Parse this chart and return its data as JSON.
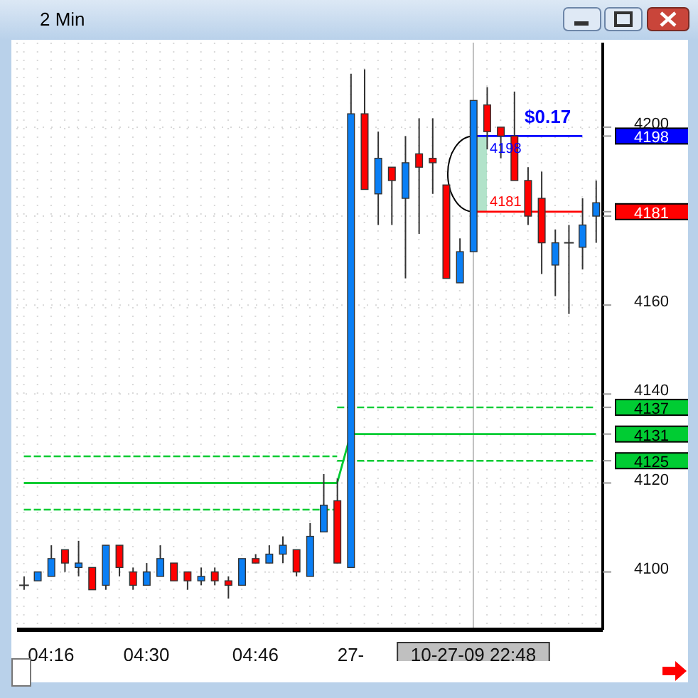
{
  "chart_data": {
    "type": "candlestick",
    "title": "2 Min",
    "categories": [
      null,
      null,
      "04:16",
      null,
      null,
      null,
      null,
      null,
      null,
      "04:30",
      null,
      null,
      null,
      null,
      null,
      null,
      null,
      "04:46",
      null,
      null,
      null,
      null,
      null,
      null,
      "27-",
      null,
      null,
      null,
      null,
      null,
      null,
      null,
      null,
      "10-27-09 22:48",
      null,
      null,
      null,
      null,
      null,
      null,
      null,
      null,
      null
    ],
    "ohlc": [
      [
        4097,
        4099,
        4096,
        4097
      ],
      [
        4098,
        4100,
        4098,
        4100
      ],
      [
        4099,
        4106,
        4099,
        4103
      ],
      [
        4105,
        4105,
        4100,
        4102
      ],
      [
        4101,
        4107,
        4099,
        4102
      ],
      [
        4101,
        4101,
        4096,
        4096
      ],
      [
        4097,
        4106,
        4096,
        4106
      ],
      [
        4106,
        4106,
        4099,
        4101
      ],
      [
        4100,
        4101,
        4096,
        4097
      ],
      [
        4097,
        4102,
        4097,
        4100
      ],
      [
        4099,
        4106,
        4099,
        4103
      ],
      [
        4102,
        4102,
        4098,
        4098
      ],
      [
        4100,
        4100,
        4096,
        4098
      ],
      [
        4098,
        4101,
        4097,
        4099
      ],
      [
        4100,
        4101,
        4097,
        4098
      ],
      [
        4098,
        4099,
        4094,
        4097
      ],
      [
        4097,
        4103,
        4097,
        4103
      ],
      [
        4103,
        4104,
        4102,
        4102
      ],
      [
        4102,
        4106,
        4102,
        4104
      ],
      [
        4104,
        4108,
        4102,
        4106
      ],
      [
        4105,
        4105,
        4099,
        4100
      ],
      [
        4099,
        4111,
        4099,
        4108
      ],
      [
        4109,
        4122,
        4109,
        4115
      ],
      [
        4116,
        4121,
        4102,
        4102
      ],
      [
        4101,
        4212,
        4101,
        4203
      ],
      [
        4203,
        4213,
        4186,
        4186
      ],
      [
        4185,
        4199,
        4178,
        4193
      ],
      [
        4191,
        4191,
        4178,
        4188
      ],
      [
        4184,
        4198,
        4166,
        4192
      ],
      [
        4194,
        4202,
        4176,
        4191
      ],
      [
        4193,
        4202,
        4185,
        4192
      ],
      [
        4187,
        4187,
        4166,
        4166
      ],
      [
        4165,
        4175,
        4165,
        4172
      ],
      [
        4172,
        4206,
        4172,
        4206
      ],
      [
        4205,
        4209,
        4195,
        4199
      ],
      [
        4200,
        4200,
        4193,
        4198
      ],
      [
        4198,
        4208,
        4188,
        4188
      ],
      [
        4188,
        4191,
        4178,
        4180
      ],
      [
        4184,
        4190,
        4167,
        4174
      ],
      [
        4169,
        4177,
        4162,
        4174
      ],
      [
        4174,
        4178,
        4158,
        4174
      ],
      [
        4173,
        4184,
        4168,
        4178
      ],
      [
        4180,
        4188,
        4174,
        4183
      ]
    ],
    "colors": [
      "#333333",
      "#0a7ff5",
      "#0a7ff5",
      "#ff0000",
      "#0a7ff5",
      "#ff0000",
      "#0a7ff5",
      "#ff0000",
      "#ff0000",
      "#0a7ff5",
      "#0a7ff5",
      "#ff0000",
      "#ff0000",
      "#0a7ff5",
      "#ff0000",
      "#ff0000",
      "#0a7ff5",
      "#ff0000",
      "#0a7ff5",
      "#0a7ff5",
      "#ff0000",
      "#0a7ff5",
      "#0a7ff5",
      "#ff0000",
      "#0a7ff5",
      "#ff0000",
      "#0a7ff5",
      "#ff0000",
      "#0a7ff5",
      "#ff0000",
      "#ff0000",
      "#ff0000",
      "#0a7ff5",
      "#0a7ff5",
      "#ff0000",
      "#ff0000",
      "#ff0000",
      "#ff0000",
      "#ff0000",
      "#0a7ff5",
      "#333333",
      "#0a7ff5",
      "#0a7ff5"
    ],
    "series": [
      {
        "type": "line",
        "color": "#00cc33",
        "values": [
          4120,
          4120,
          4120,
          4120,
          4120,
          4120,
          4120,
          4120,
          4120,
          4120,
          4120,
          4120,
          4120,
          4120,
          4120,
          4120,
          4120,
          4120,
          4120,
          4120,
          4120,
          4120,
          4120,
          4120,
          4131,
          4131,
          4131,
          4131,
          4131,
          4131,
          4131,
          4131,
          4131,
          4131,
          4131,
          4131,
          4131,
          4131,
          4131,
          4131,
          4131,
          4131,
          4131
        ]
      },
      {
        "type": "line",
        "color": "#00cc33",
        "line_style": "dashed",
        "values": [
          4126,
          4126,
          4126,
          4126,
          4126,
          4126,
          4126,
          4126,
          4126,
          4126,
          4126,
          4126,
          4126,
          4126,
          4126,
          4126,
          4126,
          4126,
          4126,
          4126,
          4126,
          4126,
          4126,
          4126,
          null,
          null,
          null,
          null,
          null,
          null,
          null,
          null,
          null,
          null,
          null,
          null,
          null,
          null,
          null,
          null,
          null,
          null,
          null
        ]
      },
      {
        "type": "line",
        "color": "#00cc33",
        "line_style": "dashed",
        "values": [
          4114,
          4114,
          4114,
          4114,
          4114,
          4114,
          4114,
          4114,
          4114,
          4114,
          4114,
          4114,
          4114,
          4114,
          4114,
          4114,
          4114,
          4114,
          4114,
          4114,
          4114,
          4114,
          4114,
          4114,
          null,
          null,
          null,
          null,
          null,
          null,
          null,
          null,
          null,
          null,
          null,
          null,
          null,
          null,
          null,
          null,
          null,
          null,
          null
        ]
      },
      {
        "type": "line",
        "color": "#00cc33",
        "line_style": "dashed",
        "values": [
          null,
          null,
          null,
          null,
          null,
          null,
          null,
          null,
          null,
          null,
          null,
          null,
          null,
          null,
          null,
          null,
          null,
          null,
          null,
          null,
          null,
          null,
          null,
          4137,
          null,
          4137,
          4137,
          4137,
          4137,
          4137,
          4137,
          4137,
          4137,
          4137,
          4137,
          4137,
          4137,
          4137,
          4137,
          4137,
          4137,
          4137,
          4137
        ]
      },
      {
        "type": "line",
        "color": "#00cc33",
        "line_style": "dashed",
        "values": [
          null,
          null,
          null,
          null,
          null,
          null,
          null,
          null,
          null,
          null,
          null,
          null,
          null,
          null,
          null,
          null,
          null,
          null,
          null,
          null,
          null,
          null,
          null,
          4125,
          null,
          4125,
          4125,
          4125,
          4125,
          4125,
          4125,
          4125,
          4125,
          4125,
          4125,
          4125,
          4125,
          4125,
          4125,
          4125,
          4125,
          4125,
          4125
        ]
      },
      {
        "type": "line",
        "color": "#0000ff",
        "values": [
          null,
          null,
          null,
          null,
          null,
          null,
          null,
          null,
          null,
          null,
          null,
          null,
          null,
          null,
          null,
          null,
          null,
          null,
          null,
          null,
          null,
          null,
          null,
          null,
          null,
          null,
          null,
          null,
          null,
          null,
          null,
          null,
          null,
          4198,
          4198,
          4198,
          4198,
          4198,
          4198,
          4198,
          4198,
          4198,
          null
        ],
        "lower": [
          null,
          null,
          null,
          null,
          null,
          null,
          null,
          null,
          null,
          null,
          null,
          null,
          null,
          null,
          null,
          null,
          null,
          null,
          null,
          null,
          null,
          null,
          null,
          null,
          null,
          null,
          null,
          null,
          null,
          null,
          null,
          null,
          null,
          4181,
          4181,
          null,
          null,
          null,
          null,
          null,
          null,
          null,
          null
        ],
        "upper": [
          null,
          null,
          null,
          null,
          null,
          null,
          null,
          null,
          null,
          null,
          null,
          null,
          null,
          null,
          null,
          null,
          null,
          null,
          null,
          null,
          null,
          null,
          null,
          null,
          null,
          null,
          null,
          null,
          null,
          null,
          null,
          null,
          null,
          4198,
          4198,
          null,
          null,
          null,
          null,
          null,
          null,
          null,
          null
        ],
        "value_labels": [
          null,
          null,
          null,
          null,
          null,
          null,
          null,
          null,
          null,
          null,
          null,
          null,
          null,
          null,
          null,
          null,
          null,
          null,
          null,
          null,
          null,
          null,
          null,
          null,
          null,
          null,
          null,
          null,
          null,
          null,
          null,
          null,
          null,
          null,
          "4198",
          null,
          null,
          null,
          null,
          null,
          null,
          null,
          null
        ]
      },
      {
        "type": "line",
        "color": "#ff0000",
        "values": [
          null,
          null,
          null,
          null,
          null,
          null,
          null,
          null,
          null,
          null,
          null,
          null,
          null,
          null,
          null,
          null,
          null,
          null,
          null,
          null,
          null,
          null,
          null,
          null,
          null,
          null,
          null,
          null,
          null,
          null,
          null,
          null,
          null,
          4181,
          4181,
          4181,
          4181,
          4181,
          4181,
          4181,
          4181,
          4181,
          null
        ],
        "value_labels": [
          null,
          null,
          null,
          null,
          null,
          null,
          null,
          null,
          null,
          null,
          null,
          null,
          null,
          null,
          null,
          null,
          null,
          null,
          null,
          null,
          null,
          null,
          null,
          null,
          null,
          null,
          null,
          null,
          null,
          null,
          null,
          null,
          null,
          null,
          "4181",
          null,
          null,
          null,
          null,
          null,
          null,
          null,
          null
        ]
      }
    ],
    "ylim": [
      4087,
      4219
    ],
    "yticks": [
      4100,
      4120,
      4125,
      4131,
      4137,
      4140,
      4160,
      {
        "value": 4180,
        "label": null
      },
      4181,
      4198,
      4200
    ],
    "grid": true,
    "ref_lines": [
      {
        "axis": "x",
        "value": "10-27-09 22:48",
        "color": "#c0c0c0"
      }
    ],
    "annotations": [
      "$0.17"
    ]
  }
}
